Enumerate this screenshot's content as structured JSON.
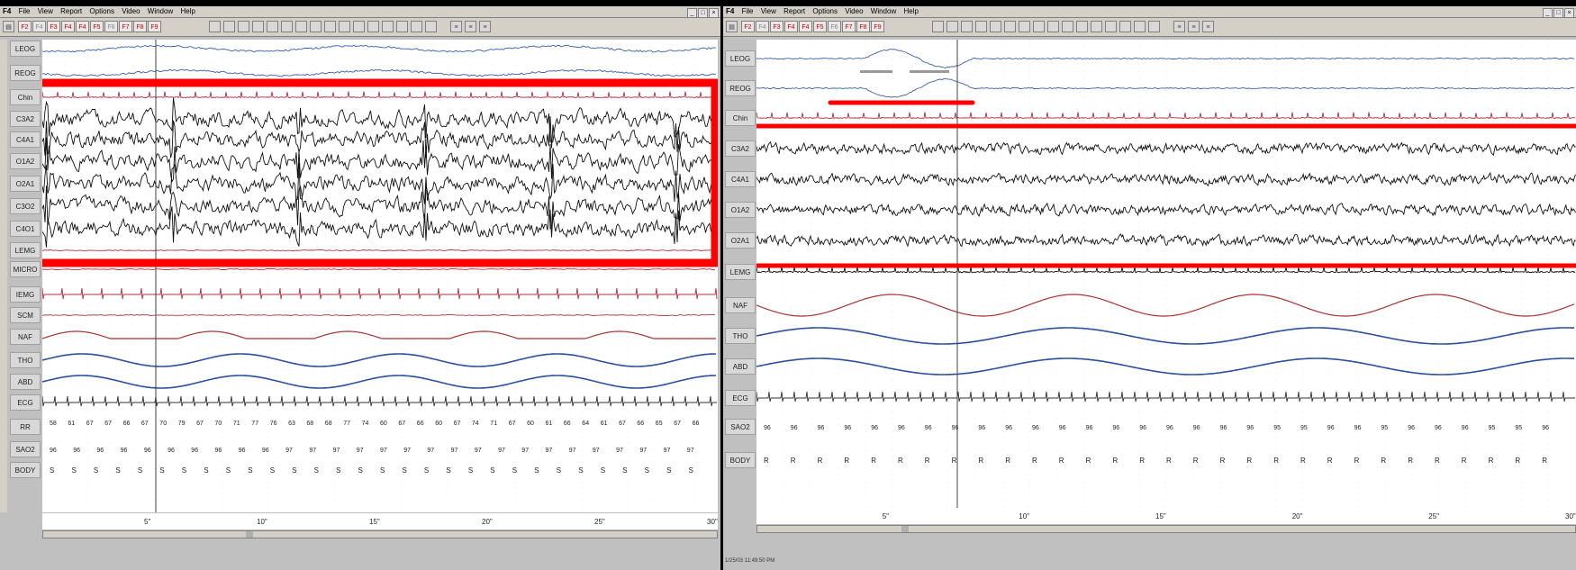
{
  "left_window": {
    "app_label": "F4",
    "menu": [
      "File",
      "View",
      "Report",
      "Options",
      "Video",
      "Window",
      "Help"
    ],
    "window_buttons": [
      "_",
      "□",
      "×"
    ],
    "toolbar_keys": [
      "F2",
      "F4",
      "F3",
      "F4",
      "F4",
      "F5",
      "F6",
      "F7",
      "F8",
      "F9"
    ],
    "channels": [
      "LEOG",
      "REOG",
      "Chin",
      "C3A2",
      "C4A1",
      "O1A2",
      "O2A1",
      "C3O2",
      "C4O1",
      "LEMG",
      "MICRO",
      "IEMG",
      "SCM",
      "NAF",
      "THO",
      "ABD",
      "ECG",
      "RR",
      "SAO2",
      "BODY"
    ],
    "time_ticks": [
      "5\"",
      "10\"",
      "15\"",
      "20\"",
      "25\"",
      "30\""
    ],
    "rr_values": [
      "58",
      "61",
      "67",
      "67",
      "66",
      "67",
      "70",
      "79",
      "67",
      "70",
      "71",
      "77",
      "76",
      "63",
      "68",
      "68",
      "77",
      "74",
      "60",
      "67",
      "66",
      "60",
      "67",
      "74",
      "71",
      "67",
      "60",
      "61",
      "66",
      "64",
      "61",
      "67",
      "66",
      "65",
      "67",
      "66"
    ],
    "sao2_values": [
      "96",
      "96",
      "96",
      "96",
      "96",
      "96",
      "96",
      "96",
      "96",
      "96",
      "97",
      "97",
      "97",
      "97",
      "97",
      "97",
      "97",
      "97",
      "97",
      "97",
      "97",
      "97",
      "97",
      "97",
      "97",
      "97",
      "97",
      "97"
    ],
    "body_values": [
      "S",
      "S",
      "S",
      "S",
      "S",
      "S",
      "S",
      "S",
      "S",
      "S",
      "S",
      "S",
      "S",
      "S",
      "S",
      "S",
      "S",
      "S",
      "S",
      "S",
      "S",
      "S",
      "S",
      "S",
      "S",
      "S",
      "S",
      "S",
      "S",
      "S"
    ]
  },
  "right_window": {
    "app_label": "F4",
    "menu": [
      "File",
      "View",
      "Report",
      "Options",
      "Video",
      "Window",
      "Help"
    ],
    "window_buttons": [
      "_",
      "□",
      "×"
    ],
    "toolbar_keys": [
      "F2",
      "F4",
      "F3",
      "F4",
      "F4",
      "F5",
      "F6",
      "F7",
      "F8",
      "F9"
    ],
    "channels": [
      "LEOG",
      "REOG",
      "Chin",
      "C3A2",
      "C4A1",
      "O1A2",
      "O2A1",
      "LEMG",
      "NAF",
      "THO",
      "ABD",
      "ECG",
      "SAO2",
      "BODY"
    ],
    "time_ticks": [
      "5\"",
      "10\"",
      "15\"",
      "20\"",
      "25\"",
      "30\""
    ],
    "sao2_values": [
      "96",
      "96",
      "96",
      "96",
      "96",
      "96",
      "96",
      "96",
      "96",
      "96",
      "96",
      "96",
      "96",
      "96",
      "96",
      "96",
      "96",
      "96",
      "96",
      "95",
      "95",
      "96",
      "96",
      "95",
      "96",
      "96",
      "96",
      "95",
      "95",
      "96"
    ],
    "body_values": [
      "R",
      "R",
      "R",
      "R",
      "R",
      "R",
      "R",
      "R",
      "R",
      "R",
      "R",
      "R",
      "R",
      "R",
      "R",
      "R",
      "R",
      "R",
      "R",
      "R",
      "R",
      "R",
      "R",
      "R",
      "R",
      "R",
      "R",
      "R",
      "R",
      "R"
    ],
    "status_text": "1/25/03 11:49:50 PM"
  },
  "colors": {
    "highlight": "#ff0000",
    "eeg_trace": "#111111",
    "eog_trace": "#3a5fa8",
    "naf_trace": "#a83232",
    "tho_abd_trace": "#2a4f9c",
    "emg_trace": "#b03040"
  }
}
